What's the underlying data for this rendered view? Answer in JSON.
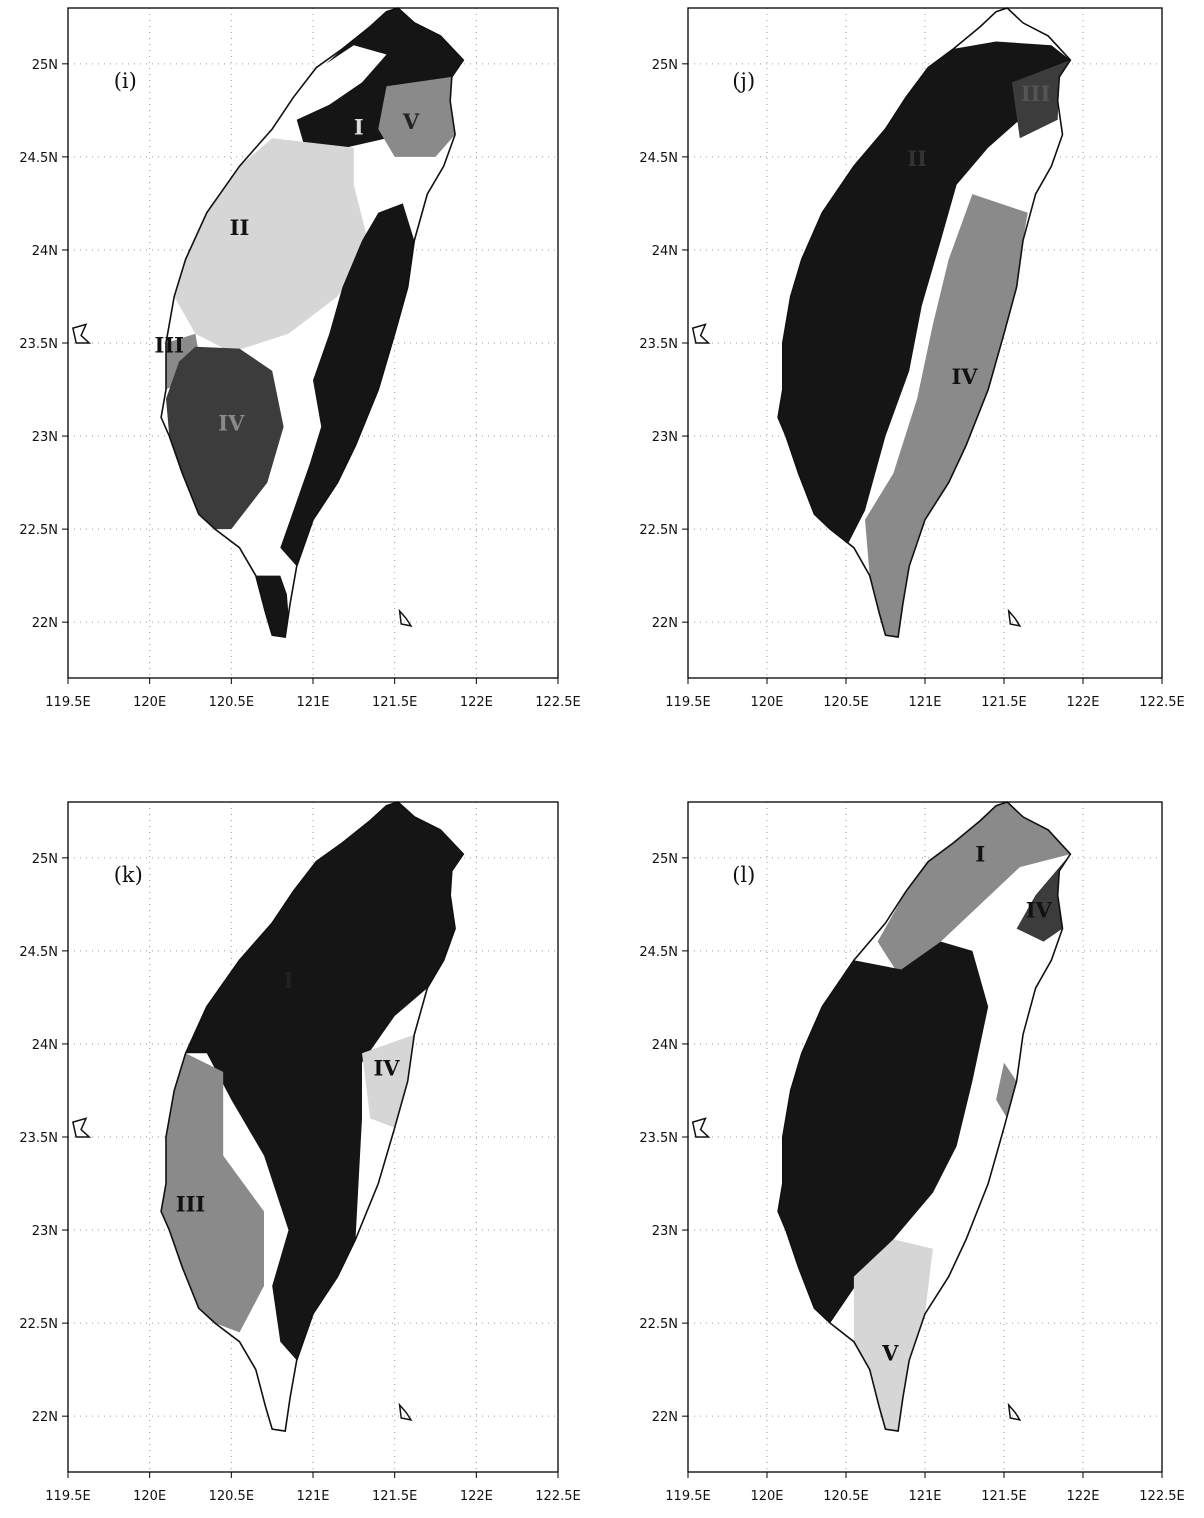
{
  "x_ticks": [
    "119.5E",
    "120E",
    "120.5E",
    "121E",
    "121.5E",
    "122E",
    "122.5E"
  ],
  "y_ticks": [
    "22N",
    "22.5N",
    "23N",
    "23.5N",
    "24N",
    "24.5N",
    "25N"
  ],
  "panels": [
    {
      "label": "(i)",
      "regions": [
        {
          "name": "I",
          "shade": "black"
        },
        {
          "name": "II",
          "shade": "light"
        },
        {
          "name": "III",
          "shade": "mid"
        },
        {
          "name": "IV",
          "shade": "dark"
        },
        {
          "name": "V",
          "shade": "mid"
        }
      ]
    },
    {
      "label": "(j)",
      "regions": [
        {
          "name": "II",
          "shade": "black"
        },
        {
          "name": "III",
          "shade": "dark"
        },
        {
          "name": "IV",
          "shade": "mid"
        }
      ]
    },
    {
      "label": "(k)",
      "regions": [
        {
          "name": "I",
          "shade": "black"
        },
        {
          "name": "III",
          "shade": "mid"
        },
        {
          "name": "IV",
          "shade": "light"
        }
      ]
    },
    {
      "label": "(l)",
      "regions": [
        {
          "name": "I",
          "shade": "mid"
        },
        {
          "name": "IV",
          "shade": "dark"
        },
        {
          "name": "V",
          "shade": "light"
        }
      ]
    }
  ],
  "colors": {
    "black": "#151515",
    "dark": "#3c3c3c",
    "mid": "#8a8a8a",
    "light": "#d6d6d6",
    "outline": "#111111",
    "grid": "#9a9a9a"
  }
}
